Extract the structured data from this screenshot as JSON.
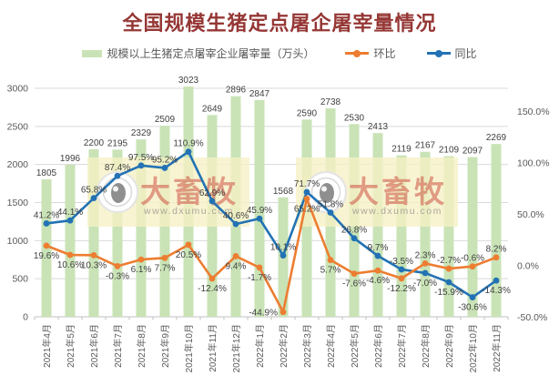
{
  "title": "全国规模生猪定点屠企屠宰量情况",
  "colors": {
    "bar": "#c9e3b6",
    "mom_line": "#ed7d31",
    "yoy_line": "#2272b4",
    "title_text": "#953735",
    "axis_text": "#595959",
    "label_text": "#404040",
    "gridline": "#d9d9d9",
    "axis_line": "#c0c0c0",
    "watermark_bg": "#f6f1c5",
    "watermark_brand": "#cc4437",
    "watermark_url": "#a8a396"
  },
  "legend": {
    "items": [
      {
        "label": "规模以上生猪定点屠宰企业屠宰量（万头）",
        "marker": "bar-swatch"
      },
      {
        "label": "环比",
        "marker": "line-dot"
      },
      {
        "label": "同比",
        "marker": "line-dot"
      }
    ]
  },
  "watermark": {
    "brand": "大畜牧",
    "url": "www.dxumu.com"
  },
  "chart_data": {
    "type": "bar",
    "subtype": "combo bar + two lines, dual y-axis",
    "title": "全国规模生猪定点屠企屠宰量情况",
    "categories": [
      "2021年4月",
      "2021年5月",
      "2021年6月",
      "2021年7月",
      "2021年8月",
      "2021年9月",
      "2021年10月",
      "2021年11月",
      "2021年12月",
      "2022年1月",
      "2022年2月",
      "2022年3月",
      "2022年4月",
      "2022年5月",
      "2022年6月",
      "2022年7月",
      "2022年8月",
      "2022年9月",
      "2022年10月",
      "2022年11月"
    ],
    "series": [
      {
        "name": "规模以上生猪定点屠宰企业屠宰量（万头）",
        "type": "bar",
        "axis": "left",
        "values": [
          1805,
          1996,
          2200,
          2195,
          2329,
          2509,
          3023,
          2649,
          2896,
          2847,
          1568,
          2590,
          2738,
          2530,
          2413,
          2119,
          2167,
          2109,
          2097,
          2269
        ]
      },
      {
        "name": "环比",
        "type": "line",
        "axis": "right",
        "unit": "%",
        "values": [
          19.6,
          10.6,
          10.3,
          -0.3,
          6.1,
          7.7,
          20.5,
          -12.4,
          9.4,
          -1.7,
          -44.9,
          65.2,
          5.7,
          -7.6,
          -4.6,
          -12.2,
          2.3,
          -2.7,
          -0.6,
          8.2
        ]
      },
      {
        "name": "同比",
        "type": "line",
        "axis": "right",
        "unit": "%",
        "values": [
          41.2,
          44.1,
          65.8,
          87.4,
          97.5,
          95.2,
          110.9,
          62.9,
          40.6,
          45.9,
          10.1,
          71.7,
          51.8,
          26.8,
          9.7,
          -3.5,
          -7.0,
          -15.9,
          -30.6,
          -14.3
        ]
      }
    ],
    "left_axis": {
      "min": 0,
      "max": 3000,
      "ticks": [
        0,
        500,
        1000,
        1500,
        2000,
        2500,
        3000
      ]
    },
    "right_axis": {
      "min": -50,
      "max": 150,
      "ticks": [
        150,
        100,
        50,
        0,
        -50
      ],
      "format": "percent_1dp"
    },
    "grid": true,
    "legend_position": "top",
    "data_labels": true
  }
}
